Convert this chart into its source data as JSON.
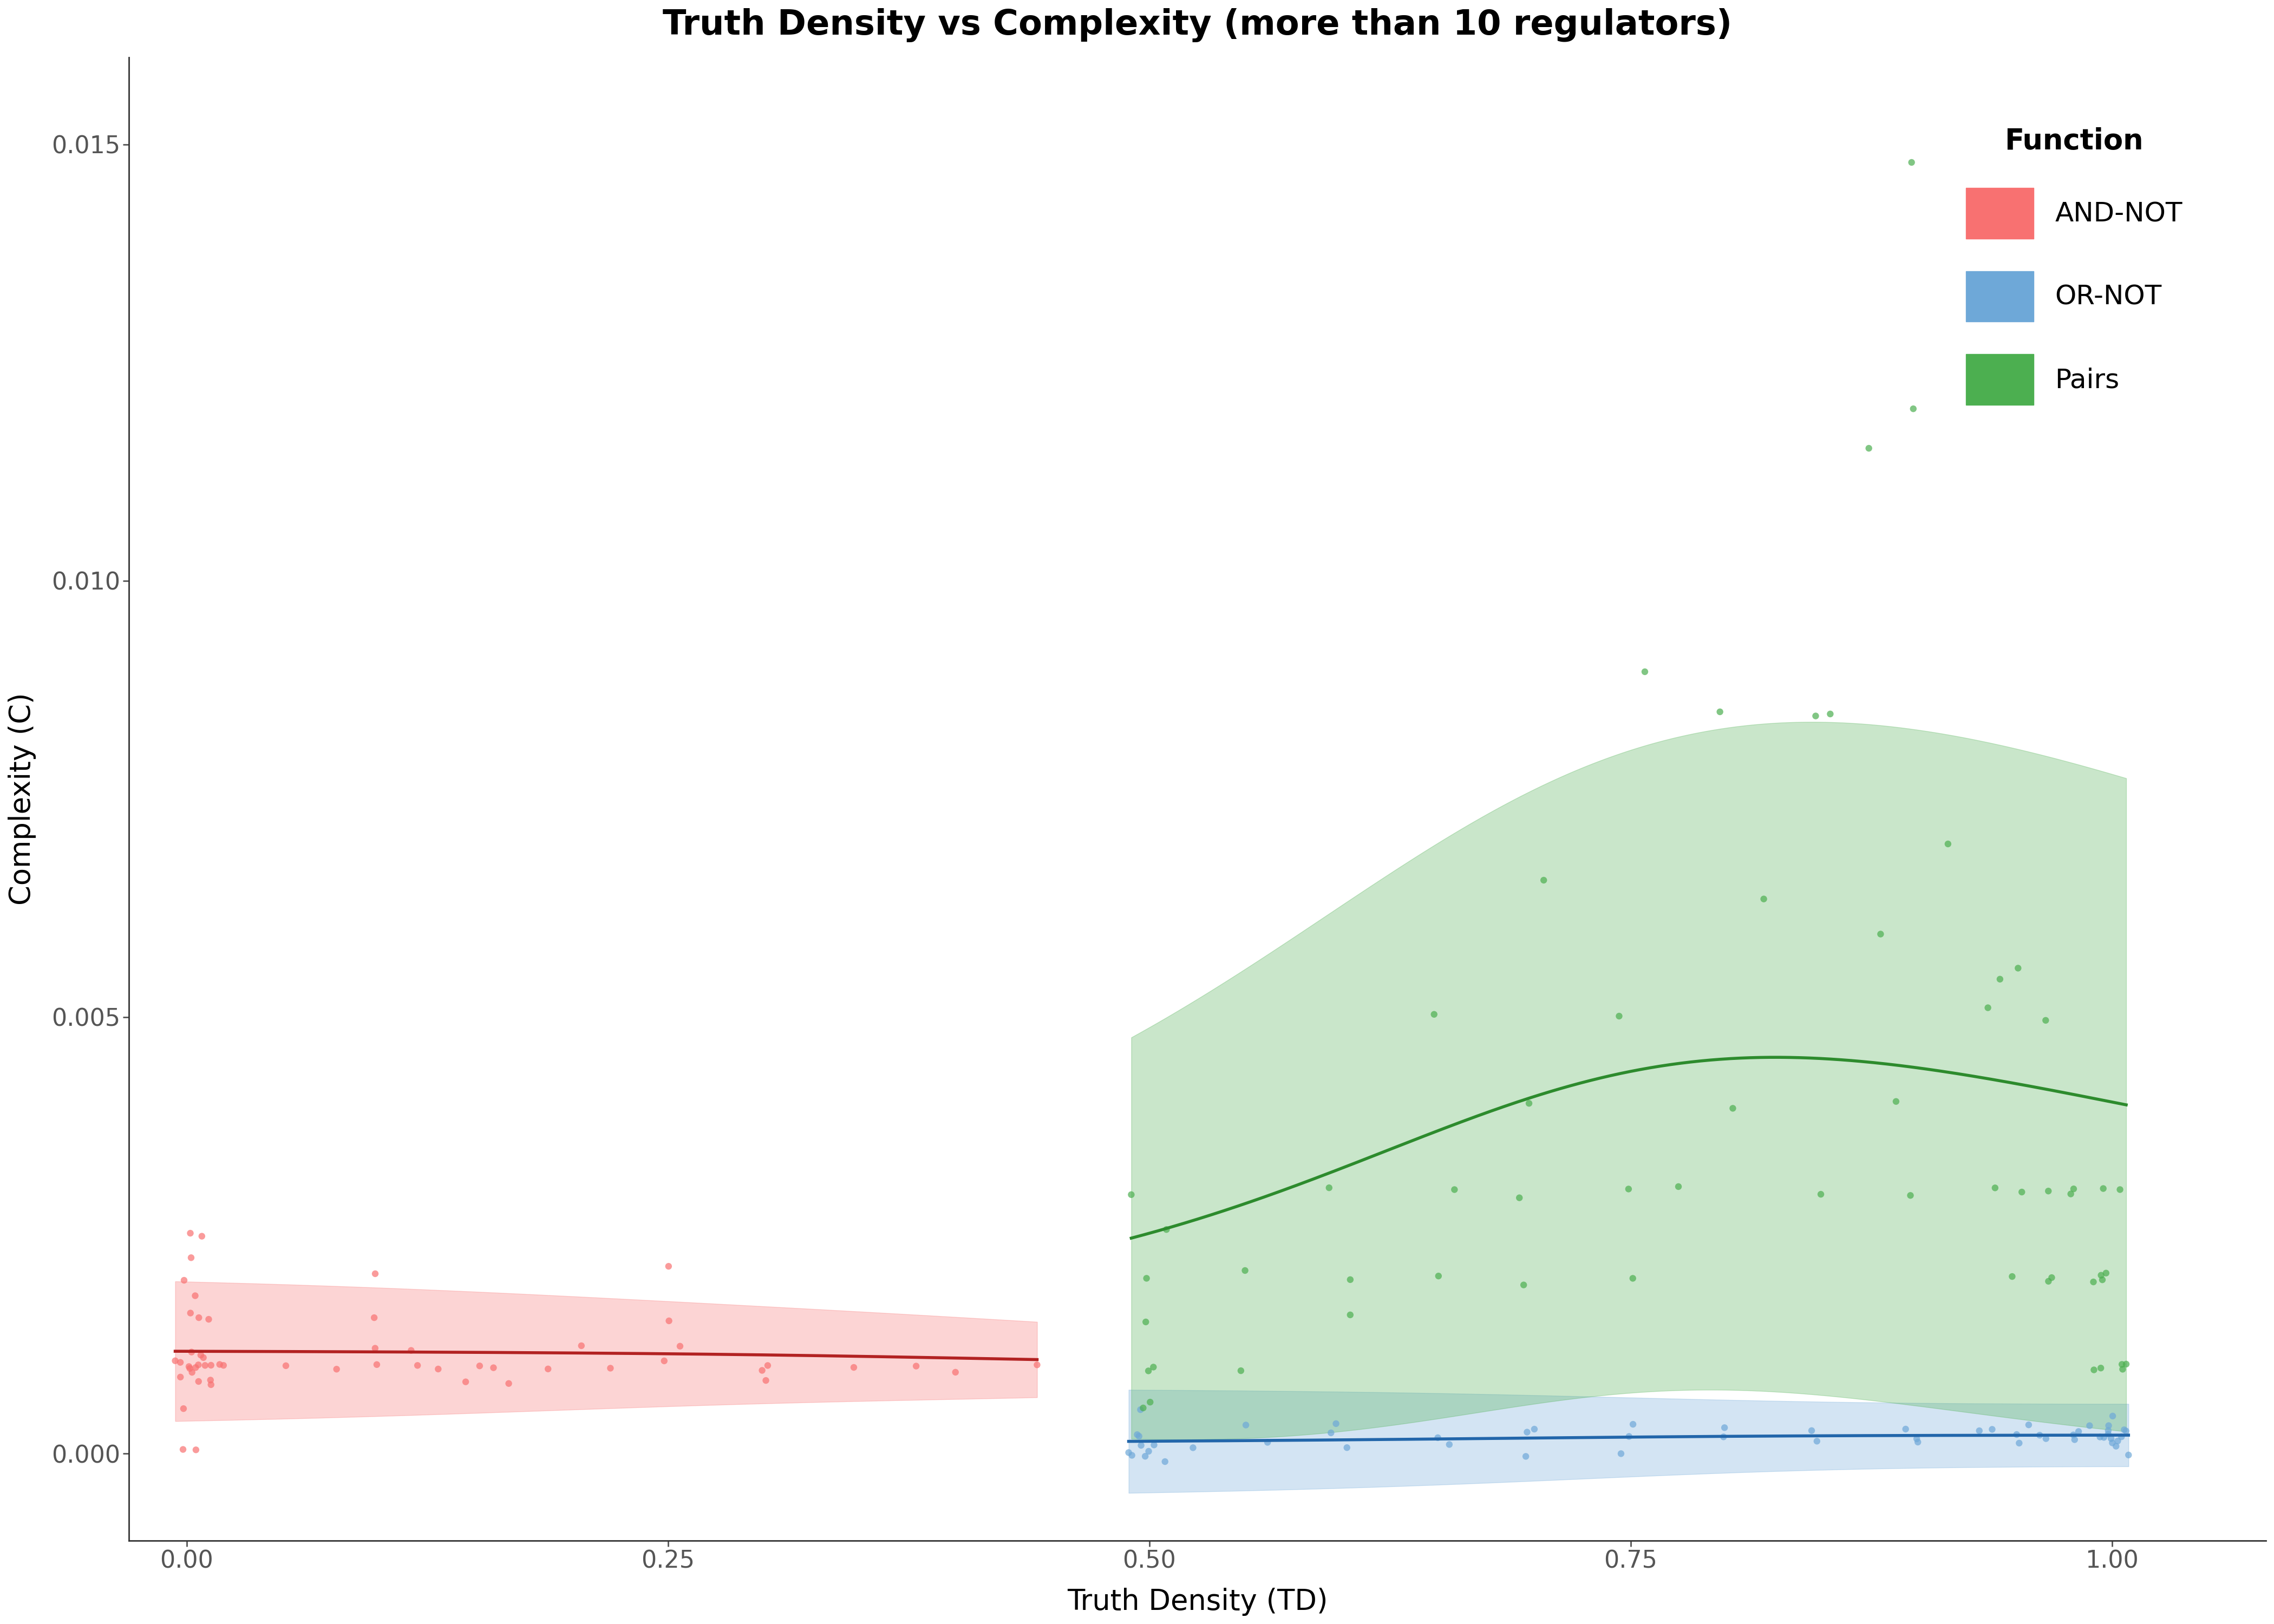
{
  "title": "Truth Density vs Complexity (more than 10 regulators)",
  "xlabel": "Truth Density (TD)",
  "ylabel": "Complexity (C)",
  "xlim": [
    -0.03,
    1.08
  ],
  "ylim": [
    -0.001,
    0.016
  ],
  "legend_title": "Function",
  "legend_entries": [
    "AND-NOT",
    "OR-NOT",
    "Pairs"
  ],
  "colors": {
    "AND-NOT": "#F87171",
    "OR-NOT": "#6EA8D8",
    "Pairs": "#4CAF50"
  },
  "band_alpha": 0.3,
  "point_alpha": 0.7,
  "point_size": 80,
  "background_color": "#FFFFFF",
  "and_not_td": [
    0.0,
    0.0,
    0.0,
    0.0,
    0.0,
    0.001,
    0.001,
    0.001,
    0.001,
    0.002,
    0.002,
    0.003,
    0.003,
    0.004,
    0.004,
    0.005,
    0.005,
    0.005,
    0.006,
    0.007,
    0.008,
    0.009,
    0.01,
    0.01,
    0.01,
    0.01,
    0.01,
    0.02,
    0.02,
    0.05,
    0.08,
    0.1,
    0.1,
    0.1,
    0.1,
    0.12,
    0.12,
    0.13,
    0.14,
    0.15,
    0.16,
    0.17,
    0.19,
    0.2,
    0.22,
    0.25,
    0.25,
    0.25,
    0.25,
    0.3,
    0.3,
    0.3,
    0.35,
    0.38,
    0.4,
    0.44
  ],
  "and_not_c": [
    0.0,
    0.0,
    0.0005,
    0.001,
    0.0012,
    0.001,
    0.0008,
    0.002,
    0.0025,
    0.001,
    0.0015,
    0.0008,
    0.0015,
    0.001,
    0.0012,
    0.001,
    0.0018,
    0.0022,
    0.001,
    0.0012,
    0.001,
    0.0008,
    0.001,
    0.0015,
    0.0008,
    0.0025,
    0.001,
    0.001,
    0.001,
    0.001,
    0.001,
    0.001,
    0.0012,
    0.0015,
    0.002,
    0.001,
    0.0012,
    0.001,
    0.0008,
    0.001,
    0.001,
    0.0008,
    0.001,
    0.0012,
    0.001,
    0.001,
    0.0015,
    0.0012,
    0.0022,
    0.001,
    0.0008,
    0.001,
    0.001,
    0.001,
    0.001,
    0.001
  ],
  "or_not_td": [
    0.5,
    0.5,
    0.5,
    0.5,
    0.5,
    0.5,
    0.5,
    0.5,
    0.5,
    0.5,
    0.52,
    0.55,
    0.55,
    0.6,
    0.6,
    0.6,
    0.65,
    0.65,
    0.7,
    0.7,
    0.7,
    0.75,
    0.75,
    0.75,
    0.8,
    0.8,
    0.85,
    0.85,
    0.9,
    0.9,
    0.9,
    0.92,
    0.95,
    0.95,
    0.95,
    0.95,
    0.96,
    0.97,
    0.98,
    0.98,
    0.99,
    0.99,
    0.99,
    1.0,
    1.0,
    1.0,
    1.0,
    1.0,
    1.0,
    1.0,
    1.0,
    1.0,
    1.0,
    1.0,
    1.0,
    1.0
  ],
  "or_not_c": [
    0.0,
    0.0,
    0.0,
    0.0,
    0.0,
    0.0001,
    0.0001,
    0.0002,
    0.0003,
    0.0005,
    0.0001,
    0.0002,
    0.0003,
    0.0002,
    0.0001,
    0.0003,
    0.0002,
    0.0001,
    0.0003,
    0.0002,
    0.0001,
    0.0002,
    0.0003,
    0.0001,
    0.0002,
    0.0003,
    0.0001,
    0.0002,
    0.0003,
    0.0002,
    0.0001,
    0.0002,
    0.0003,
    0.0002,
    0.0001,
    0.0003,
    0.0002,
    0.0001,
    0.0003,
    0.0002,
    0.0003,
    0.0002,
    0.0001,
    0.0001,
    0.0002,
    0.0003,
    0.0002,
    0.0001,
    0.0002,
    0.0003,
    0.0001,
    0.0002,
    0.0003,
    0.0002,
    0.0001,
    0.0003
  ],
  "pairs_td": [
    0.5,
    0.5,
    0.5,
    0.5,
    0.5,
    0.5,
    0.5,
    0.5,
    0.55,
    0.55,
    0.6,
    0.6,
    0.6,
    0.65,
    0.65,
    0.65,
    0.7,
    0.7,
    0.7,
    0.7,
    0.75,
    0.75,
    0.75,
    0.75,
    0.78,
    0.8,
    0.8,
    0.82,
    0.85,
    0.85,
    0.85,
    0.87,
    0.88,
    0.9,
    0.9,
    0.9,
    0.9,
    0.92,
    0.93,
    0.94,
    0.95,
    0.95,
    0.95,
    0.96,
    0.97,
    0.97,
    0.97,
    0.98,
    0.98,
    0.98,
    0.99,
    0.99,
    0.99,
    1.0,
    1.0,
    1.0,
    1.0,
    1.0,
    1.0,
    1.0,
    1.0
  ],
  "pairs_c": [
    0.0025,
    0.001,
    0.0005,
    0.003,
    0.002,
    0.0015,
    0.001,
    0.0005,
    0.002,
    0.001,
    0.003,
    0.002,
    0.0015,
    0.003,
    0.002,
    0.005,
    0.004,
    0.003,
    0.0065,
    0.002,
    0.005,
    0.003,
    0.009,
    0.002,
    0.003,
    0.0085,
    0.004,
    0.0065,
    0.0085,
    0.003,
    0.0085,
    0.006,
    0.0115,
    0.012,
    0.0148,
    0.004,
    0.003,
    0.007,
    0.005,
    0.003,
    0.0055,
    0.003,
    0.002,
    0.0055,
    0.003,
    0.002,
    0.005,
    0.003,
    0.002,
    0.003,
    0.002,
    0.001,
    0.003,
    0.001,
    0.001,
    0.002,
    0.003,
    0.001,
    0.002,
    0.002,
    0.001
  ]
}
